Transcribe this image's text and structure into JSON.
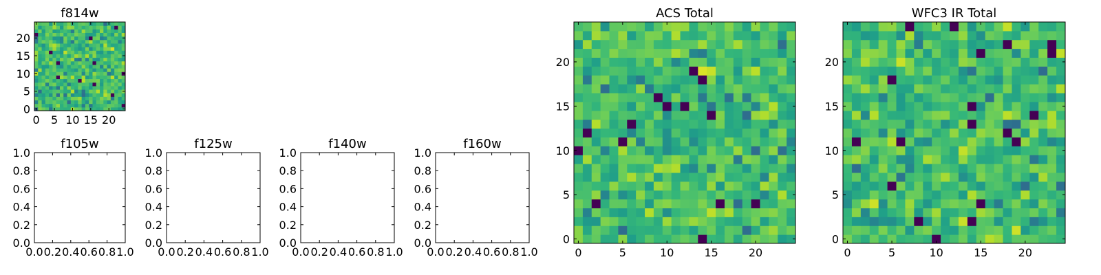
{
  "chart_data": [
    {
      "type": "heatmap",
      "title": "f814w",
      "grid_size": 25,
      "seed": 814,
      "xticks": [
        0,
        5,
        10,
        15,
        20
      ],
      "yticks": [
        0,
        5,
        10,
        15,
        20
      ],
      "xlim": [
        -0.5,
        24.5
      ],
      "ylim": [
        -0.5,
        24.5
      ],
      "colormap": "viridis"
    },
    {
      "type": "heatmap",
      "title": "f105w",
      "empty": true,
      "xticks": [
        "0.0",
        "0.2",
        "0.4",
        "0.6",
        "0.8",
        "1.0"
      ],
      "yticks": [
        "0.0",
        "0.2",
        "0.4",
        "0.6",
        "0.8",
        "1.0"
      ],
      "xlim": [
        0,
        1
      ],
      "ylim": [
        0,
        1
      ]
    },
    {
      "type": "heatmap",
      "title": "f125w",
      "empty": true,
      "xticks": [
        "0.0",
        "0.2",
        "0.4",
        "0.6",
        "0.8",
        "1.0"
      ],
      "yticks": [
        "0.0",
        "0.2",
        "0.4",
        "0.6",
        "0.8",
        "1.0"
      ],
      "xlim": [
        0,
        1
      ],
      "ylim": [
        0,
        1
      ]
    },
    {
      "type": "heatmap",
      "title": "f140w",
      "empty": true,
      "xticks": [
        "0.0",
        "0.2",
        "0.4",
        "0.6",
        "0.8",
        "1.0"
      ],
      "yticks": [
        "0.0",
        "0.2",
        "0.4",
        "0.6",
        "0.8",
        "1.0"
      ],
      "xlim": [
        0,
        1
      ],
      "ylim": [
        0,
        1
      ]
    },
    {
      "type": "heatmap",
      "title": "f160w",
      "empty": true,
      "xticks": [
        "0.0",
        "0.2",
        "0.4",
        "0.6",
        "0.8",
        "1.0"
      ],
      "yticks": [
        "0.0",
        "0.2",
        "0.4",
        "0.6",
        "0.8",
        "1.0"
      ],
      "xlim": [
        0,
        1
      ],
      "ylim": [
        0,
        1
      ]
    },
    {
      "type": "heatmap",
      "title": "ACS Total",
      "grid_size": 25,
      "seed": 2024,
      "xticks": [
        0,
        5,
        10,
        15,
        20
      ],
      "yticks": [
        0,
        5,
        10,
        15,
        20
      ],
      "xlim": [
        -0.5,
        24.5
      ],
      "ylim": [
        -0.5,
        24.5
      ],
      "colormap": "viridis"
    },
    {
      "type": "heatmap",
      "title": "WFC3 IR Total",
      "grid_size": 25,
      "seed": 3113,
      "xticks": [
        0,
        5,
        10,
        15,
        20
      ],
      "yticks": [
        0,
        5,
        10,
        15,
        20
      ],
      "xlim": [
        -0.5,
        24.5
      ],
      "ylim": [
        -0.5,
        24.5
      ],
      "colormap": "viridis"
    }
  ]
}
